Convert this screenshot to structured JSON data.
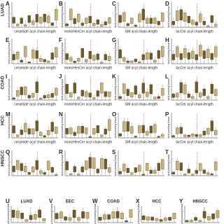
{
  "y_label": "lipid pmol/mg tissue",
  "rows": [
    {
      "label": "LUAD",
      "panels": [
        {
          "letter": "A",
          "xlabel": "ceramide acyl chain-length"
        },
        {
          "letter": "B",
          "xlabel": "monoHexCer acyl chain-length"
        },
        {
          "letter": "C",
          "xlabel": "SM acyl chain-length"
        },
        {
          "letter": "D",
          "xlabel": "lacCer acyl chain-length"
        }
      ]
    },
    {
      "panels": [
        {
          "letter": "E",
          "xlabel": "ceramide acyl chain-length"
        },
        {
          "letter": "F",
          "xlabel": "monoHexCer acyl chain-length"
        },
        {
          "letter": "G",
          "xlabel": "SM acyl chain-length"
        },
        {
          "letter": "H",
          "xlabel": "lacCer acyl chain-length"
        }
      ]
    },
    {
      "label": "COAD",
      "panels": [
        {
          "letter": "I",
          "xlabel": "ceramide acyl chain-length"
        },
        {
          "letter": "J",
          "xlabel": "monoHexCer acyl chain-length"
        },
        {
          "letter": "K",
          "xlabel": "SM acyl chain-length"
        },
        {
          "letter": "L",
          "xlabel": "lacCer acyl chain-length"
        }
      ]
    },
    {
      "label": "HCC",
      "panels": [
        {
          "letter": "M",
          "xlabel": "ceramide acyl chain-length"
        },
        {
          "letter": "N",
          "xlabel": "monoHexCer acyl chain-length"
        },
        {
          "letter": "O",
          "xlabel": "SM acyl chain-length"
        },
        {
          "letter": "P",
          "xlabel": "lacCer acyl chain-length"
        }
      ]
    },
    {
      "label": "HNSCC",
      "panels": [
        {
          "letter": "Q"
        },
        {
          "letter": "R"
        },
        {
          "letter": "S"
        },
        {
          "letter": "T"
        }
      ]
    }
  ],
  "bottom": [
    {
      "letter": "U",
      "title": "LUAD"
    },
    {
      "letter": "V",
      "title": "EEC"
    },
    {
      "letter": "W",
      "title": "COAD"
    },
    {
      "letter": "X",
      "title": "HCC"
    },
    {
      "letter": "Y",
      "title": "HNSCC"
    }
  ]
}
